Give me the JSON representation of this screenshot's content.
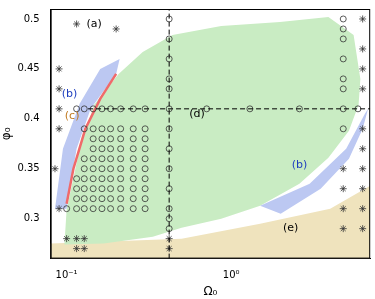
{
  "chart_data": {
    "type": "scatter",
    "x_label": "Ω₀",
    "y_label": "φ₀",
    "log": "x",
    "grid": false,
    "xlim": [
      0.08,
      7
    ],
    "xticks": [
      {
        "value": 0.1,
        "label": "10⁻¹"
      },
      {
        "value": 1,
        "label": "10⁰"
      }
    ],
    "ylim": [
      0.26,
      0.51
    ],
    "yticks": [
      0.3,
      0.35,
      0.4,
      0.45,
      0.5
    ],
    "regions": [
      {
        "color": "#efe3bd",
        "x": [
          0.08,
          0.08,
          0.5,
          1.5,
          4,
          7,
          7
        ],
        "y": [
          0.26,
          0.275,
          0.28,
          0.295,
          0.31,
          0.333,
          0.26
        ]
      },
      {
        "color": "#c9ecc3",
        "x": [
          0.097,
          0.1,
          0.12,
          0.147,
          0.207,
          0.29,
          0.44,
          0.87,
          1.98,
          3.9,
          5.55,
          6.1,
          5.95,
          5.2,
          3.9,
          2.6,
          1.5,
          0.87,
          0.5,
          0.334,
          0.168,
          0.097
        ],
        "y": [
          0.274,
          0.309,
          0.37,
          0.414,
          0.445,
          0.467,
          0.484,
          0.493,
          0.497,
          0.502,
          0.484,
          0.44,
          0.414,
          0.388,
          0.361,
          0.335,
          0.313,
          0.3,
          0.291,
          0.282,
          0.275,
          0.274
        ]
      },
      {
        "color": "#bcc8f2",
        "x": [
          0.085,
          0.095,
          0.12,
          0.16,
          0.21,
          0.2,
          0.14,
          0.115,
          0.1
        ],
        "y": [
          0.31,
          0.37,
          0.415,
          0.45,
          0.46,
          0.445,
          0.41,
          0.37,
          0.31
        ]
      },
      {
        "color": "#bcc8f2",
        "x": [
          1.5,
          3.0,
          5.0,
          6.5,
          6.8,
          6.3,
          5.2,
          3.5,
          2.0,
          1.5
        ],
        "y": [
          0.313,
          0.335,
          0.37,
          0.405,
          0.41,
          0.39,
          0.36,
          0.33,
          0.305,
          0.313
        ]
      }
    ],
    "curves": [
      {
        "color": "#f06a6a",
        "x": [
          0.1,
          0.11,
          0.13,
          0.16,
          0.2
        ],
        "y": [
          0.315,
          0.35,
          0.39,
          0.42,
          0.445
        ]
      }
    ],
    "dashed_lines": [
      {
        "color": "#000000",
        "line_style": "dashed",
        "x": [
          0.42,
          0.42
        ],
        "y": [
          0.26,
          0.51
        ]
      },
      {
        "color": "#000000",
        "line_style": "dashed",
        "x": [
          0.135,
          7
        ],
        "y": [
          0.41,
          0.41
        ]
      }
    ],
    "series": [
      {
        "marker": "circle",
        "color": "#333333",
        "x": [
          0.115,
          0.128,
          0.145,
          0.164,
          0.185,
          0.213,
          0.254,
          0.3,
          0.42,
          0.71,
          1.3,
          2.6,
          4.8,
          5.9,
          0.42,
          0.42,
          0.42,
          0.42,
          0.42,
          0.42,
          0.42,
          0.42,
          0.42,
          0.42,
          0.42,
          0.42,
          4.8,
          4.8,
          4.8,
          4.8,
          4.8,
          4.8,
          4.8,
          0.128,
          0.145,
          0.164,
          0.185,
          0.213,
          0.254,
          0.3,
          0.145,
          0.164,
          0.185,
          0.213,
          0.254,
          0.3,
          0.145,
          0.164,
          0.185,
          0.213,
          0.254,
          0.3,
          0.128,
          0.145,
          0.164,
          0.185,
          0.213,
          0.254,
          0.3,
          0.128,
          0.145,
          0.164,
          0.185,
          0.213,
          0.254,
          0.3,
          0.115,
          0.128,
          0.145,
          0.164,
          0.185,
          0.213,
          0.254,
          0.3,
          0.115,
          0.128,
          0.145,
          0.164,
          0.185,
          0.213,
          0.254,
          0.3,
          0.115,
          0.128,
          0.145,
          0.164,
          0.185,
          0.213,
          0.254,
          0.3,
          0.1,
          0.115,
          0.128,
          0.145,
          0.164,
          0.185,
          0.213,
          0.254,
          0.3
        ],
        "y": [
          0.41,
          0.41,
          0.41,
          0.41,
          0.41,
          0.41,
          0.41,
          0.41,
          0.41,
          0.41,
          0.41,
          0.41,
          0.41,
          0.41,
          0.5,
          0.48,
          0.46,
          0.44,
          0.43,
          0.39,
          0.37,
          0.35,
          0.33,
          0.31,
          0.3,
          0.29,
          0.5,
          0.49,
          0.48,
          0.46,
          0.44,
          0.43,
          0.39,
          0.39,
          0.39,
          0.39,
          0.39,
          0.39,
          0.39,
          0.39,
          0.38,
          0.38,
          0.38,
          0.38,
          0.38,
          0.38,
          0.37,
          0.37,
          0.37,
          0.37,
          0.37,
          0.37,
          0.36,
          0.36,
          0.36,
          0.36,
          0.36,
          0.36,
          0.36,
          0.35,
          0.35,
          0.35,
          0.35,
          0.35,
          0.35,
          0.35,
          0.34,
          0.34,
          0.34,
          0.34,
          0.34,
          0.34,
          0.34,
          0.34,
          0.33,
          0.33,
          0.33,
          0.33,
          0.33,
          0.33,
          0.33,
          0.33,
          0.32,
          0.32,
          0.32,
          0.32,
          0.32,
          0.32,
          0.32,
          0.32,
          0.31,
          0.31,
          0.31,
          0.31,
          0.31,
          0.31,
          0.31,
          0.31,
          0.31
        ]
      },
      {
        "marker": "star",
        "color": "#333333",
        "x": [
          0.09,
          0.09,
          0.09,
          0.09,
          0.115,
          0.2,
          0.1,
          0.115,
          0.128,
          0.115,
          0.128,
          0.42,
          0.42,
          6.3,
          6.3,
          6.3,
          6.3,
          6.3,
          6.3,
          6.3,
          6.3,
          6.3,
          6.3,
          4.8,
          4.8,
          4.8,
          4.8,
          0.09,
          0.085
        ],
        "y": [
          0.45,
          0.43,
          0.41,
          0.39,
          0.495,
          0.49,
          0.28,
          0.28,
          0.28,
          0.27,
          0.27,
          0.28,
          0.27,
          0.5,
          0.47,
          0.45,
          0.43,
          0.39,
          0.37,
          0.35,
          0.33,
          0.31,
          0.29,
          0.35,
          0.33,
          0.31,
          0.29,
          0.31,
          0.35
        ]
      }
    ],
    "annotations": [
      {
        "text": "(a)",
        "x": 0.147,
        "y": 0.495,
        "color": "#000000"
      },
      {
        "text": "(b)",
        "x": 0.104,
        "y": 0.425,
        "color": "#1f3fbf"
      },
      {
        "text": "(c)",
        "x": 0.108,
        "y": 0.403,
        "color": "#c07a20"
      },
      {
        "text": "(d)",
        "x": 0.62,
        "y": 0.405,
        "color": "#000000"
      },
      {
        "text": "(b)",
        "x": 2.6,
        "y": 0.354,
        "color": "#1f3fbf"
      },
      {
        "text": "(e)",
        "x": 2.3,
        "y": 0.291,
        "color": "#000000"
      }
    ]
  }
}
